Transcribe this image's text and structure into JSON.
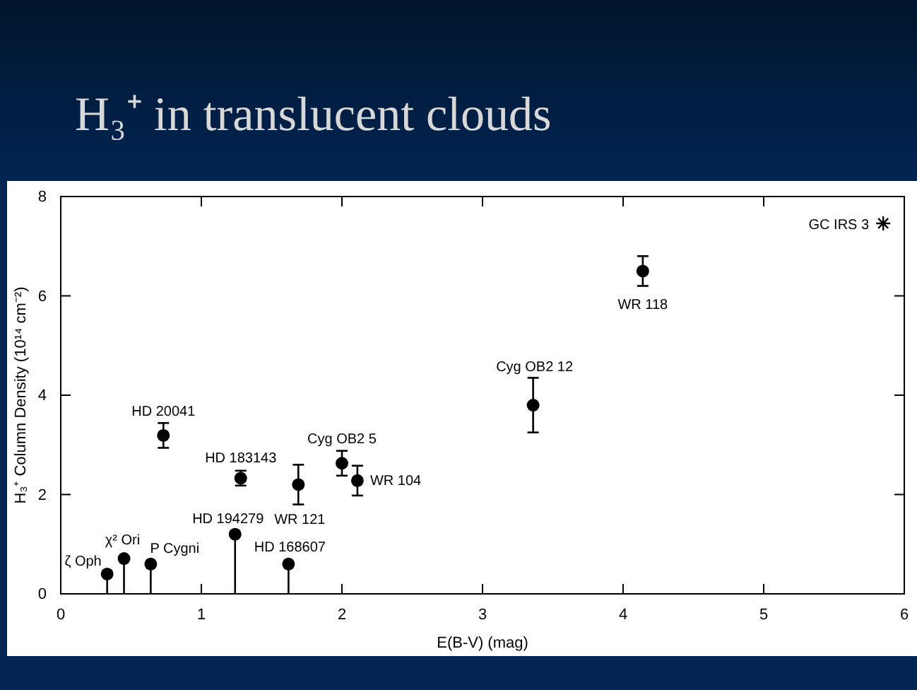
{
  "chart_data": {
    "type": "scatter",
    "title": "H₃⁺ in translucent clouds",
    "xlabel": "E(B-V) (mag)",
    "ylabel": "H₃⁺ Column Density (10¹⁴ cm⁻²)",
    "xlim": [
      0,
      6
    ],
    "ylim": [
      0,
      8
    ],
    "xticks": [
      0,
      1,
      2,
      3,
      4,
      5,
      6
    ],
    "yticks": [
      0,
      2,
      4,
      6,
      8
    ],
    "grid": false,
    "series": [
      {
        "color": "#000000",
        "marker": "circle",
        "x": [
          0.33,
          0.45,
          0.64,
          0.73,
          1.24,
          1.28,
          1.62,
          1.69,
          2.0,
          2.11,
          3.36,
          4.14
        ],
        "values": [
          0.4,
          0.71,
          0.6,
          3.19,
          1.2,
          2.33,
          0.6,
          2.2,
          2.63,
          2.28,
          3.8,
          6.5
        ],
        "errors": [
          [
            0.4,
            0
          ],
          [
            0.71,
            0
          ],
          [
            0.6,
            0
          ],
          0.25,
          [
            1.2,
            0
          ],
          0.15,
          [
            0.6,
            0
          ],
          0.4,
          0.25,
          0.3,
          0.55,
          0.3
        ]
      },
      {
        "color": "#000000",
        "marker": "cross",
        "x": [
          5.85
        ],
        "values": [
          7.46
        ]
      }
    ],
    "annotations": [
      {
        "text": "ζ Oph",
        "x": 0.33,
        "y": 0.4
      },
      {
        "text": "χ² Ori",
        "x": 0.45,
        "y": 0.71
      },
      {
        "text": "P Cygni",
        "x": 0.64,
        "y": 0.6
      },
      {
        "text": "HD 20041",
        "x": 0.73,
        "y": 3.19
      },
      {
        "text": "HD 183143",
        "x": 1.28,
        "y": 2.33
      },
      {
        "text": "HD 194279",
        "x": 1.24,
        "y": 1.2
      },
      {
        "text": "WR 121",
        "x": 1.69,
        "y": 2.2
      },
      {
        "text": "HD 168607",
        "x": 1.62,
        "y": 0.6
      },
      {
        "text": "Cyg OB2 5",
        "x": 2.0,
        "y": 2.63
      },
      {
        "text": "WR 104",
        "x": 2.11,
        "y": 2.28
      },
      {
        "text": "Cyg OB2 12",
        "x": 3.36,
        "y": 3.8
      },
      {
        "text": "WR 118",
        "x": 4.14,
        "y": 6.5
      },
      {
        "text": "GC IRS 3",
        "x": 5.85,
        "y": 7.46
      }
    ]
  }
}
